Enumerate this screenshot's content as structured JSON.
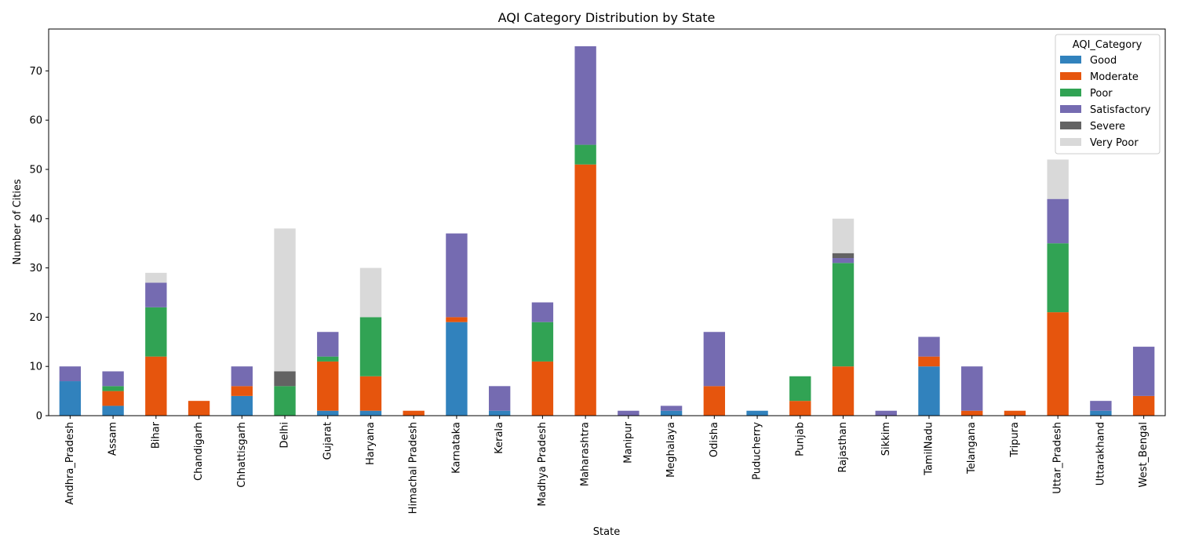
{
  "chart_data": {
    "type": "bar",
    "stacked": true,
    "title": "AQI Category Distribution by State",
    "xlabel": "State",
    "ylabel": "Number of Cities",
    "ylim": [
      0,
      78.5
    ],
    "yticks": [
      0,
      10,
      20,
      30,
      40,
      50,
      60,
      70
    ],
    "grid": false,
    "legend": {
      "title": "AQI_Category",
      "position": "top-right"
    },
    "categories": [
      "Andhra_Pradesh",
      "Assam",
      "Bihar",
      "Chandigarh",
      "Chhattisgarh",
      "Delhi",
      "Gujarat",
      "Haryana",
      "Himachal Pradesh",
      "Karnataka",
      "Kerala",
      "Madhya Pradesh",
      "Maharashtra",
      "Manipur",
      "Meghalaya",
      "Odisha",
      "Puducherry",
      "Punjab",
      "Rajasthan",
      "Sikkim",
      "TamilNadu",
      "Telangana",
      "Tripura",
      "Uttar_Pradesh",
      "Uttarakhand",
      "West_Bengal"
    ],
    "series": [
      {
        "name": "Good",
        "color": "#3182bd",
        "values": [
          7,
          2,
          0,
          0,
          4,
          0,
          1,
          1,
          0,
          19,
          1,
          0,
          0,
          0,
          1,
          0,
          1,
          0,
          0,
          0,
          10,
          0,
          0,
          0,
          1,
          0
        ]
      },
      {
        "name": "Moderate",
        "color": "#e6550d",
        "values": [
          0,
          3,
          12,
          3,
          2,
          0,
          10,
          7,
          1,
          1,
          0,
          11,
          51,
          0,
          0,
          6,
          0,
          3,
          10,
          0,
          2,
          1,
          1,
          21,
          0,
          4
        ]
      },
      {
        "name": "Poor",
        "color": "#31a354",
        "values": [
          0,
          1,
          10,
          0,
          0,
          6,
          1,
          12,
          0,
          0,
          0,
          8,
          4,
          0,
          0,
          0,
          0,
          5,
          21,
          0,
          0,
          0,
          0,
          14,
          0,
          0
        ]
      },
      {
        "name": "Satisfactory",
        "color": "#756bb1",
        "values": [
          3,
          3,
          5,
          0,
          4,
          0,
          5,
          0,
          0,
          17,
          5,
          4,
          20,
          1,
          1,
          11,
          0,
          0,
          1,
          1,
          4,
          9,
          0,
          9,
          2,
          10
        ]
      },
      {
        "name": "Severe",
        "color": "#636363",
        "values": [
          0,
          0,
          0,
          0,
          0,
          3,
          0,
          0,
          0,
          0,
          0,
          0,
          0,
          0,
          0,
          0,
          0,
          0,
          1,
          0,
          0,
          0,
          0,
          0,
          0,
          0
        ]
      },
      {
        "name": "Very Poor",
        "color": "#d9d9d9",
        "values": [
          0,
          0,
          2,
          0,
          0,
          29,
          0,
          10,
          0,
          0,
          0,
          0,
          0,
          0,
          0,
          0,
          0,
          0,
          7,
          0,
          0,
          0,
          0,
          8,
          0,
          0
        ]
      }
    ]
  }
}
